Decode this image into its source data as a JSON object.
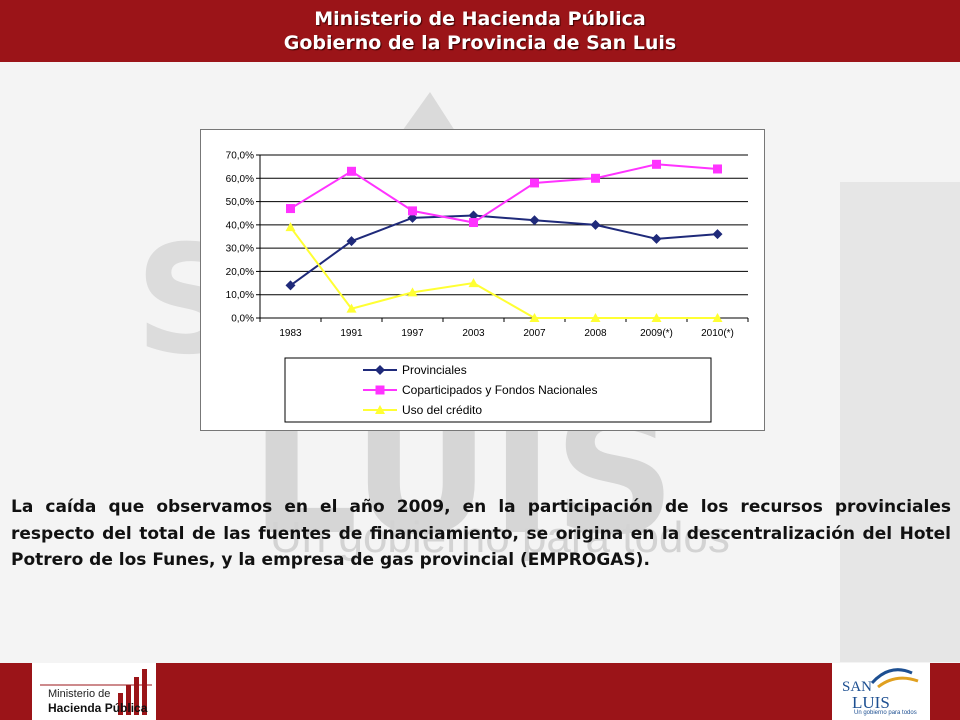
{
  "header": {
    "line1": "Ministerio de Hacienda Pública",
    "line2": "Gobierno de la Provincia de San Luis"
  },
  "chart_data": {
    "type": "line",
    "categories": [
      "1983",
      "1991",
      "1997",
      "2003",
      "2007",
      "2008",
      "2009(*)",
      "2010(*)"
    ],
    "ylim": [
      0,
      70
    ],
    "y_ticks": [
      "0,0%",
      "10,0%",
      "20,0%",
      "30,0%",
      "40,0%",
      "50,0%",
      "60,0%",
      "70,0%"
    ],
    "grid": true,
    "legend_position": "bottom",
    "series": [
      {
        "name": "Provinciales",
        "color": "#1f2a7a",
        "marker": "diamond",
        "values": [
          14,
          33,
          43,
          44,
          42,
          40,
          34,
          36
        ]
      },
      {
        "name": "Coparticipados y Fondos Nacionales",
        "color": "#ff33ff",
        "marker": "square",
        "values": [
          47,
          63,
          46,
          41,
          58,
          60,
          66,
          64
        ]
      },
      {
        "name": "Uso del crédito",
        "color": "#ffff33",
        "marker": "triangle",
        "values": [
          39,
          4,
          11,
          15,
          0,
          0,
          0,
          0
        ]
      }
    ]
  },
  "paragraph": "La caída que observamos en el año 2009, en la participación de los recursos provinciales respecto del total de las fuentes de financiamiento, se origina en la descentralización del Hotel Potrero de los Funes, y la empresa de gas provincial (EMPROGAS).",
  "footer": {
    "left_logo": {
      "line1": "Ministerio de",
      "line2": "Hacienda Pública"
    },
    "right_logo": {
      "name_top": "SAN",
      "name_bottom": "LUIS",
      "slogan": "Un gobierno para todos"
    }
  },
  "watermark": {
    "text": "SAN LUIS",
    "slogan": "Un gobierno para todos"
  },
  "colors": {
    "brand_red": "#9b1418",
    "logo_blue": "#1d4f91"
  }
}
